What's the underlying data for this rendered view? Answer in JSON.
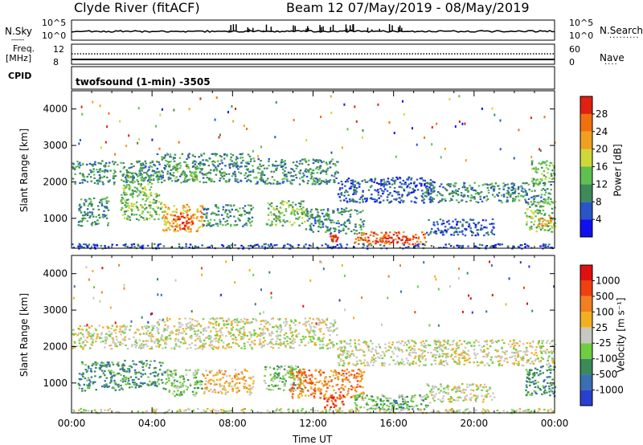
{
  "header": {
    "site": "Clyde River (fitACF)",
    "beam_range": "Beam 12 07/May/2019 - 08/May/2019"
  },
  "strips": {
    "nsky_label": "N.Sky",
    "nsky_ticks": [
      "10^5",
      "10^0"
    ],
    "nsearch_label": "N.Search",
    "nsearch_ticks": [
      "10^5",
      "10^0"
    ],
    "freq_label": "Freq.",
    "freq_unit": "[MHz]",
    "freq_ticks": [
      "12",
      "8"
    ],
    "nave_label": "Nave",
    "nave_ticks": [
      "60",
      "0"
    ],
    "cpid_label": "CPID",
    "cpid_value": "twofsound (1-min) -3505"
  },
  "chart_data": [
    {
      "type": "heatmap",
      "name": "power",
      "xlabel": "",
      "ylabel": "Slant Range [km]",
      "xlim_hours": [
        0,
        24
      ],
      "ylim_km": [
        180,
        4500
      ],
      "yticks": [
        "1000",
        "2000",
        "3000",
        "4000"
      ],
      "colorbar_label": "Power [dB]",
      "colorbar_ticks": [
        "4",
        "8",
        "12",
        "16",
        "20",
        "24",
        "28"
      ],
      "colorbar_colors": [
        "#1010ee",
        "#2a55c8",
        "#3f8a5a",
        "#5fbf50",
        "#cfd83a",
        "#f0a020",
        "#f07010",
        "#e02010"
      ],
      "regions": [
        {
          "t0": 0.0,
          "t1": 4.3,
          "r0": 1950,
          "r1": 2600,
          "level": 2
        },
        {
          "t0": 2.5,
          "t1": 4.0,
          "r0": 1600,
          "r1": 2200,
          "level": 3
        },
        {
          "t0": 4.2,
          "t1": 9.0,
          "r0": 2000,
          "r1": 2800,
          "level": 2
        },
        {
          "t0": 5.0,
          "t1": 6.3,
          "r0": 2050,
          "r1": 2500,
          "level": 3
        },
        {
          "t0": 9.0,
          "t1": 13.2,
          "r0": 1950,
          "r1": 2650,
          "level": 2
        },
        {
          "t0": 13.2,
          "t1": 18.0,
          "r0": 1450,
          "r1": 2150,
          "level": 1
        },
        {
          "t0": 17.5,
          "t1": 23.8,
          "r0": 1450,
          "r1": 2000,
          "level": 2
        },
        {
          "t0": 22.8,
          "t1": 24.0,
          "r0": 1950,
          "r1": 2600,
          "level": 3
        },
        {
          "t0": 0.3,
          "t1": 1.8,
          "r0": 800,
          "r1": 1600,
          "level": 2
        },
        {
          "t0": 2.4,
          "t1": 4.5,
          "r0": 950,
          "r1": 1700,
          "level": 3
        },
        {
          "t0": 4.5,
          "t1": 6.5,
          "r0": 650,
          "r1": 1400,
          "level": 5
        },
        {
          "t0": 5.0,
          "t1": 6.0,
          "r0": 700,
          "r1": 1150,
          "level": 7
        },
        {
          "t0": 6.5,
          "t1": 9.0,
          "r0": 800,
          "r1": 1400,
          "level": 2
        },
        {
          "t0": 9.6,
          "t1": 11.6,
          "r0": 800,
          "r1": 1500,
          "level": 3
        },
        {
          "t0": 11.6,
          "t1": 14.5,
          "r0": 600,
          "r1": 1300,
          "level": 2
        },
        {
          "t0": 12.8,
          "t1": 13.2,
          "r0": 350,
          "r1": 600,
          "level": 7
        },
        {
          "t0": 14.0,
          "t1": 17.6,
          "r0": 300,
          "r1": 650,
          "level": 6
        },
        {
          "t0": 15.0,
          "t1": 17.0,
          "r0": 350,
          "r1": 550,
          "level": 7
        },
        {
          "t0": 17.6,
          "t1": 21.0,
          "r0": 550,
          "r1": 1000,
          "level": 1
        },
        {
          "t0": 22.5,
          "t1": 24.0,
          "r0": 650,
          "r1": 1500,
          "level": 3
        },
        {
          "t0": 23.1,
          "t1": 23.8,
          "r0": 800,
          "r1": 1100,
          "level": 5
        },
        {
          "t0": 0.0,
          "t1": 24.0,
          "r0": 190,
          "r1": 320,
          "level": 1
        }
      ]
    },
    {
      "type": "heatmap",
      "name": "velocity",
      "xlabel": "Time UT",
      "ylabel": "Slant Range [km]",
      "xlim_hours": [
        0,
        24
      ],
      "ylim_km": [
        180,
        4500
      ],
      "xticks": [
        "00:00",
        "04:00",
        "08:00",
        "12:00",
        "16:00",
        "20:00",
        "00:00"
      ],
      "yticks": [
        "1000",
        "2000",
        "3000",
        "4000"
      ],
      "colorbar_label": "Velocity [m s⁻¹]",
      "colorbar_ticks": [
        "1000",
        "500",
        "100",
        "25",
        "-25",
        "-100",
        "-500",
        "-1000"
      ],
      "colorbar_colors": [
        "#2a3fd0",
        "#3a6fb0",
        "#3b8a5a",
        "#6fcd40",
        "#c8c8c0",
        "#f0b020",
        "#f08020",
        "#f04010",
        "#e01010"
      ],
      "regions": [
        {
          "t0": 0.0,
          "t1": 4.3,
          "r0": 1950,
          "r1": 2600,
          "level": 4
        },
        {
          "t0": 4.2,
          "t1": 13.2,
          "r0": 1950,
          "r1": 2800,
          "level": 4
        },
        {
          "t0": 13.2,
          "t1": 24.0,
          "r0": 1500,
          "r1": 2200,
          "level": 4
        },
        {
          "t0": 0.3,
          "t1": 2.5,
          "r0": 800,
          "r1": 1600,
          "level": 2
        },
        {
          "t0": 2.5,
          "t1": 4.5,
          "r0": 900,
          "r1": 1650,
          "level": 2
        },
        {
          "t0": 4.5,
          "t1": 6.5,
          "r0": 650,
          "r1": 1400,
          "level": 3
        },
        {
          "t0": 6.5,
          "t1": 9.0,
          "r0": 700,
          "r1": 1400,
          "level": 5
        },
        {
          "t0": 9.5,
          "t1": 11.5,
          "r0": 800,
          "r1": 1500,
          "level": 3
        },
        {
          "t0": 10.8,
          "t1": 14.5,
          "r0": 600,
          "r1": 1400,
          "level": 6
        },
        {
          "t0": 12.5,
          "t1": 13.5,
          "r0": 300,
          "r1": 700,
          "level": 7
        },
        {
          "t0": 14.0,
          "t1": 17.8,
          "r0": 280,
          "r1": 700,
          "level": 3
        },
        {
          "t0": 15.0,
          "t1": 17.0,
          "r0": 300,
          "r1": 550,
          "level": 2
        },
        {
          "t0": 17.6,
          "t1": 21.0,
          "r0": 500,
          "r1": 1000,
          "level": 4
        },
        {
          "t0": 22.5,
          "t1": 24.0,
          "r0": 650,
          "r1": 1500,
          "level": 2
        },
        {
          "t0": 0.0,
          "t1": 24.0,
          "r0": 190,
          "r1": 320,
          "level": 4
        }
      ]
    }
  ]
}
